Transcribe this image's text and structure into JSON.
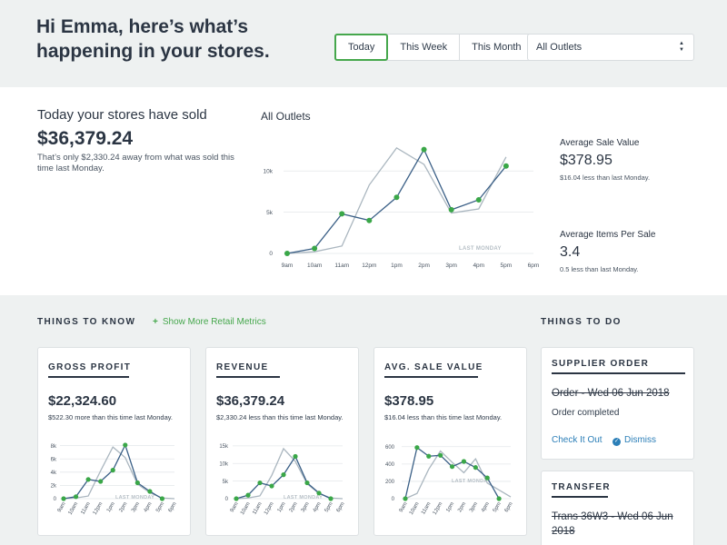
{
  "header": {
    "greeting": "Hi Emma, here’s what’s happening in your stores.",
    "periods": [
      "Today",
      "This Week",
      "This Month"
    ],
    "active_period": "Today",
    "outlet_select": "All Outlets"
  },
  "summary": {
    "heading": "Today your stores have sold",
    "value": "$36,379.24",
    "note": "That’s only $2,330.24 away from what was sold this time last Monday.",
    "chart_title": "All Outlets",
    "metrics": [
      {
        "label": "Average Sale Value",
        "value": "$378.95",
        "note": "$16.04 less than last Monday."
      },
      {
        "label": "Average Items Per Sale",
        "value": "3.4",
        "note": "0.5 less than last Monday."
      }
    ]
  },
  "sections": {
    "things_to_know": "THINGS TO KNOW",
    "more_link": "Show More Retail Metrics",
    "things_to_do": "THINGS TO DO"
  },
  "cards": [
    {
      "title": "GROSS PROFIT",
      "value": "$22,324.60",
      "note": "$522.30 more than this time last Monday."
    },
    {
      "title": "REVENUE",
      "value": "$36,379.24",
      "note": "$2,330.24 less than this time last Monday."
    },
    {
      "title": "AVG. SALE VALUE",
      "value": "$378.95",
      "note": "$16.04 less than this time last Monday."
    }
  ],
  "todos": [
    {
      "title": "SUPPLIER ORDER",
      "item": "Order - Wed 06 Jun 2018",
      "status": "Order completed",
      "action": "Check It Out",
      "dismiss": "Dismiss"
    },
    {
      "title": "TRANSFER",
      "item": "Trans 36W3 - Wed 06 Jun 2018"
    }
  ],
  "colors": {
    "accent": "#45a74c",
    "link": "#2c7fb8",
    "today_line": "#3a5f86",
    "last_line": "#aab6bf",
    "point": "#3aa748"
  },
  "chart_data": [
    {
      "type": "line",
      "title": "All Outlets",
      "x": [
        "9am",
        "10am",
        "11am",
        "12pm",
        "1pm",
        "2pm",
        "3pm",
        "4pm",
        "5pm",
        "6pm"
      ],
      "yticks": [
        "0",
        "5k",
        "10k"
      ],
      "ylim": [
        0,
        13000
      ],
      "annotation": "LAST MONDAY",
      "series": [
        {
          "role": "today",
          "values": [
            0,
            600,
            4800,
            4000,
            6800,
            12600,
            5300,
            6500,
            10600,
            null
          ]
        },
        {
          "role": "last_monday",
          "values": [
            0,
            200,
            900,
            8300,
            12800,
            10800,
            4900,
            5400,
            11700,
            null
          ]
        }
      ]
    },
    {
      "type": "line",
      "title": "GROSS PROFIT",
      "x": [
        "9am",
        "10am",
        "11am",
        "12pm",
        "1pm",
        "2pm",
        "3pm",
        "4pm",
        "5pm",
        "6pm"
      ],
      "yticks": [
        "0",
        "2k",
        "4k",
        "6k",
        "8k"
      ],
      "ylim": [
        0,
        8500
      ],
      "annotation": "LAST MONDAY",
      "series": [
        {
          "role": "today",
          "values": [
            0,
            300,
            2900,
            2600,
            4300,
            8100,
            2400,
            1100,
            0,
            null
          ]
        },
        {
          "role": "last_monday",
          "values": [
            0,
            100,
            400,
            4200,
            7800,
            6200,
            2200,
            900,
            100,
            0
          ]
        }
      ]
    },
    {
      "type": "line",
      "title": "REVENUE",
      "x": [
        "9am",
        "10am",
        "11am",
        "12pm",
        "1pm",
        "2pm",
        "3pm",
        "4pm",
        "5pm",
        "6pm"
      ],
      "yticks": [
        "0",
        "5k",
        "10k",
        "15k"
      ],
      "ylim": [
        0,
        16000
      ],
      "annotation": "LAST MONDAY",
      "series": [
        {
          "role": "today",
          "values": [
            0,
            1000,
            4500,
            3600,
            6800,
            12000,
            4500,
            1600,
            0,
            null
          ]
        },
        {
          "role": "last_monday",
          "values": [
            0,
            200,
            800,
            6600,
            14200,
            10600,
            4200,
            1500,
            200,
            0
          ]
        }
      ]
    },
    {
      "type": "line",
      "title": "AVG. SALE VALUE",
      "x": [
        "9am",
        "10am",
        "11am",
        "12pm",
        "1pm",
        "2pm",
        "3pm",
        "4pm",
        "5pm",
        "6pm"
      ],
      "yticks": [
        "0",
        "200",
        "400",
        "600"
      ],
      "ylim": [
        0,
        650
      ],
      "annotation": "LAST MONDAY",
      "series": [
        {
          "role": "today",
          "values": [
            0,
            590,
            490,
            500,
            370,
            430,
            360,
            240,
            0,
            null
          ]
        },
        {
          "role": "last_monday",
          "values": [
            0,
            60,
            340,
            550,
            420,
            300,
            460,
            180,
            100,
            20
          ]
        }
      ]
    }
  ]
}
